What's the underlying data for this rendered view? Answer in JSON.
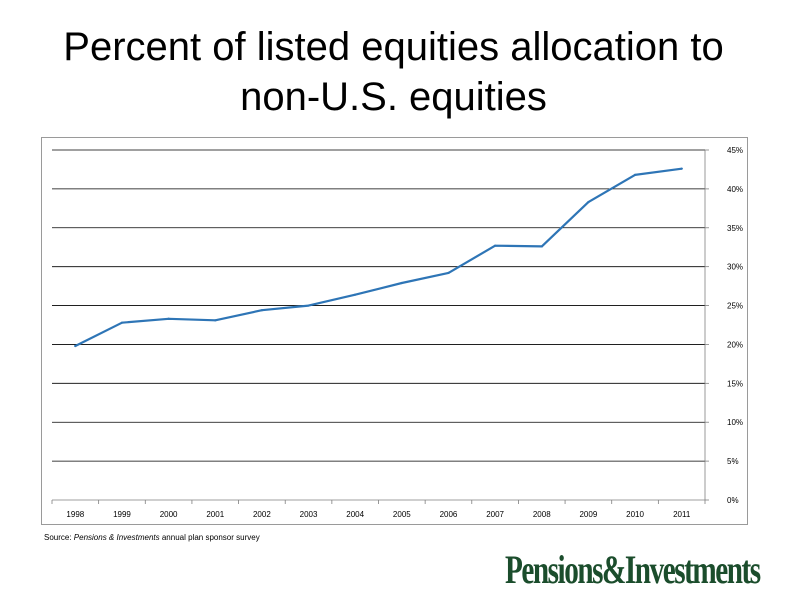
{
  "slide": {
    "title_line1": "Percent of listed equities allocation to",
    "title_line2": "non-U.S. equities"
  },
  "source": {
    "prefix": "Source: ",
    "publication": "Pensions & Investments",
    "suffix": " annual plan sponsor survey"
  },
  "logo": {
    "text": "Pensions&Investments",
    "color": "#1b4d2c"
  },
  "chart_data": {
    "type": "line",
    "title": "",
    "xlabel": "",
    "ylabel": "",
    "categories": [
      "1998",
      "1999",
      "2000",
      "2001",
      "2002",
      "2003",
      "2004",
      "2005",
      "2006",
      "2007",
      "2008",
      "2009",
      "2010",
      "2011"
    ],
    "series": [
      {
        "values": [
          19.8,
          22.8,
          23.3,
          23.1,
          24.4,
          25.0,
          26.4,
          27.9,
          29.2,
          32.7,
          32.6,
          38.3,
          41.8,
          42.6
        ],
        "color": "#2e75b6"
      }
    ],
    "ylim": [
      0,
      45
    ],
    "y_ticks": [
      "0%",
      "5%",
      "10%",
      "15%",
      "20%",
      "25%",
      "30%",
      "35%",
      "40%",
      "45%"
    ],
    "y_axis_position": "right",
    "grid": true,
    "legend": "none"
  }
}
